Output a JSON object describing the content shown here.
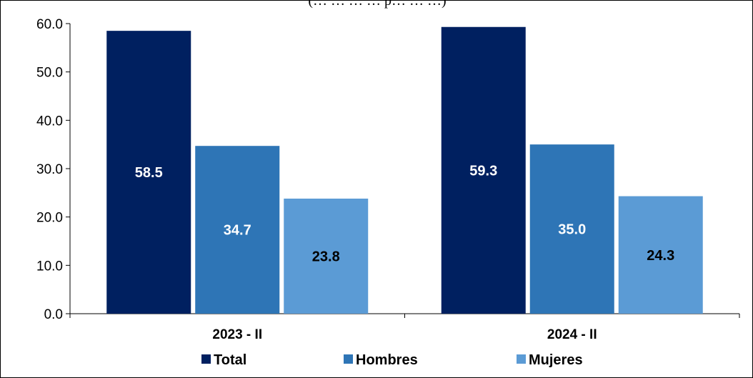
{
  "chart_data": {
    "type": "bar",
    "title": "",
    "subtitle": "(… … … … p… … …)",
    "categories": [
      "2023 - II",
      "2024 - II"
    ],
    "series": [
      {
        "name": "Total",
        "values": [
          58.5,
          59.3
        ],
        "color": "#002060",
        "label_color": "#ffffff"
      },
      {
        "name": "Hombres",
        "values": [
          34.7,
          35.0
        ],
        "color": "#2E75B6",
        "label_color": "#ffffff"
      },
      {
        "name": "Mujeres",
        "values": [
          23.8,
          24.3
        ],
        "color": "#5B9BD5",
        "label_color": "#000000"
      }
    ],
    "data_labels": [
      [
        "58.5",
        "59.3"
      ],
      [
        "34.7",
        "35.0"
      ],
      [
        "23.8",
        "24.3"
      ]
    ],
    "y_ticks": [
      "0.0",
      "10.0",
      "20.0",
      "30.0",
      "40.0",
      "50.0",
      "60.0"
    ],
    "ylim": [
      0,
      60
    ],
    "xlabel": "",
    "ylabel": "",
    "grid": false,
    "legend_position": "bottom"
  }
}
